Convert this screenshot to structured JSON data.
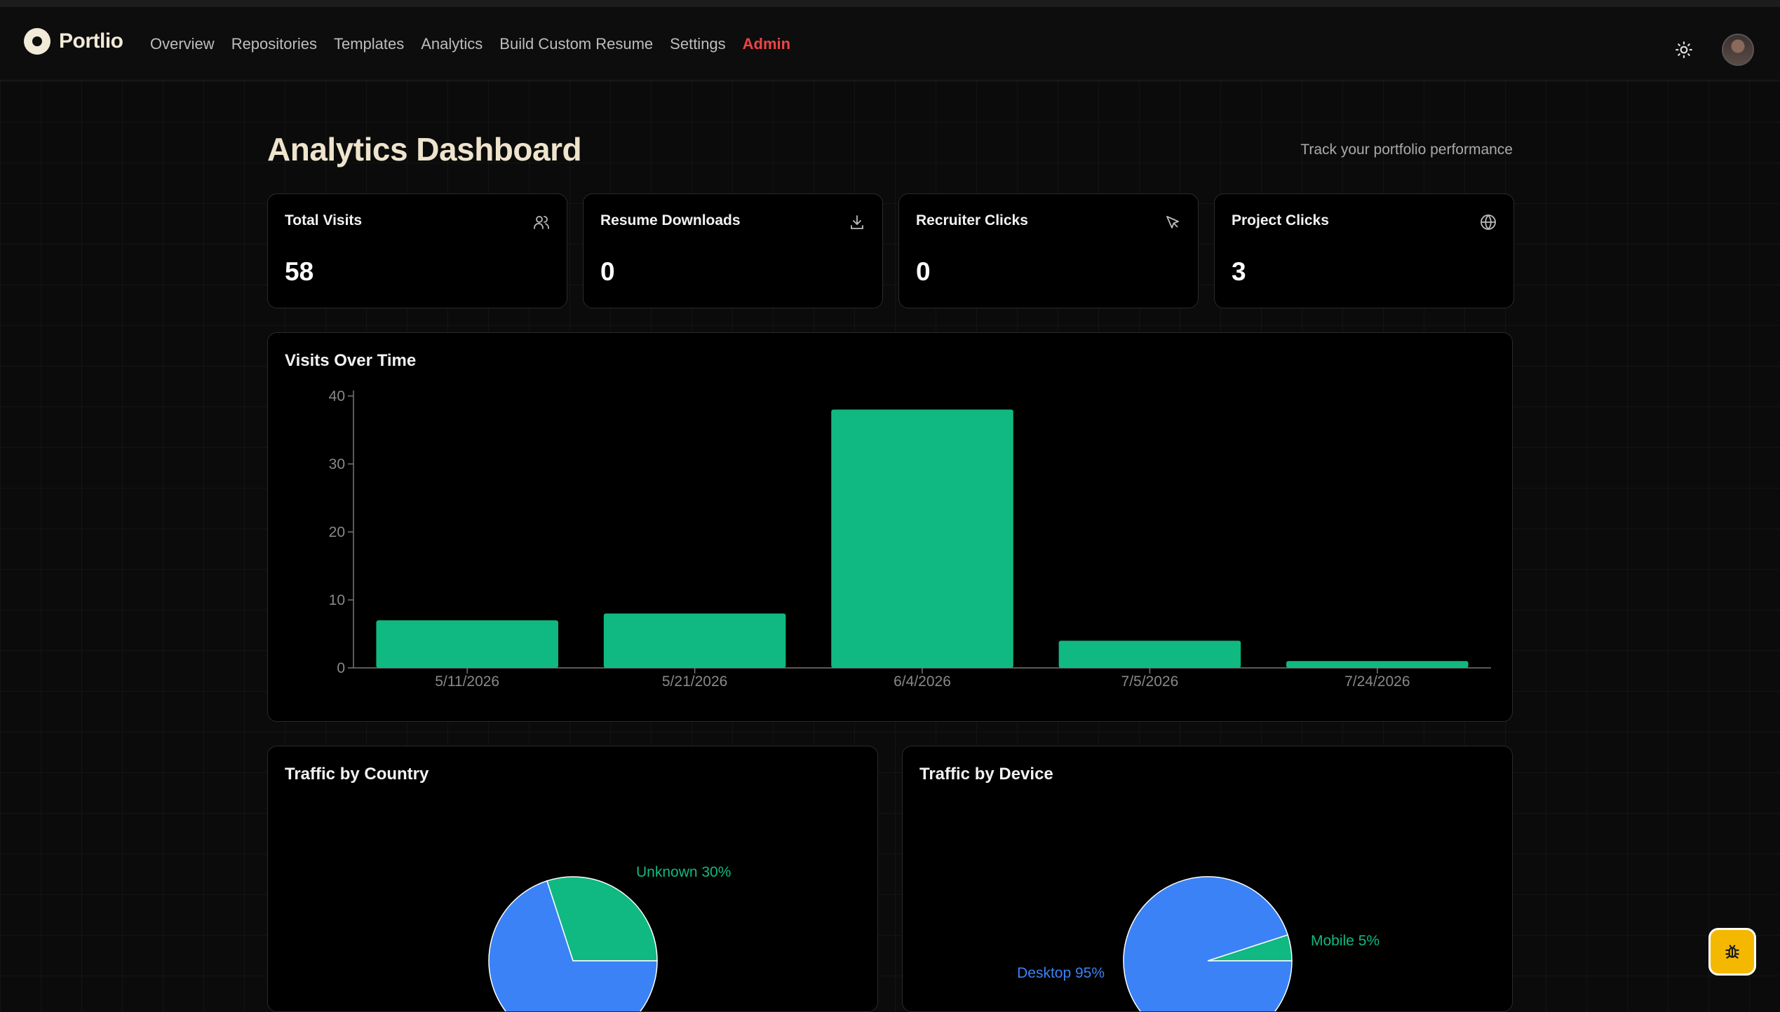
{
  "app": {
    "brand": "Portlio"
  },
  "nav": {
    "items": [
      "Overview",
      "Repositories",
      "Templates",
      "Analytics",
      "Build Custom Resume",
      "Settings"
    ],
    "admin": "Admin"
  },
  "header": {
    "title": "Analytics Dashboard",
    "subtitle": "Track your portfolio performance"
  },
  "stats": [
    {
      "label": "Total Visits",
      "value": "58",
      "icon": "users-icon"
    },
    {
      "label": "Resume Downloads",
      "value": "0",
      "icon": "download-icon"
    },
    {
      "label": "Recruiter Clicks",
      "value": "0",
      "icon": "cursor-icon"
    },
    {
      "label": "Project Clicks",
      "value": "3",
      "icon": "globe-icon"
    }
  ],
  "colors": {
    "green": "#10b981",
    "blue": "#3b82f6",
    "admin": "#ef4444",
    "accent": "#f5b800"
  },
  "chart_data": [
    {
      "type": "bar",
      "title": "Visits Over Time",
      "categories": [
        "5/11/2026",
        "5/21/2026",
        "6/4/2026",
        "7/5/2026",
        "7/24/2026"
      ],
      "values": [
        7,
        8,
        38,
        4,
        1
      ],
      "yticks": [
        0,
        10,
        20,
        30,
        40
      ],
      "ylim": [
        0,
        40
      ],
      "color": "#10b981",
      "grid": false
    },
    {
      "type": "pie",
      "title": "Traffic by Country",
      "slices": [
        {
          "label": "Unknown 30%",
          "value": 30,
          "color": "#10b981"
        },
        {
          "label": "",
          "value": 70,
          "color": "#3b82f6"
        }
      ]
    },
    {
      "type": "pie",
      "title": "Traffic by Device",
      "slices": [
        {
          "label": "Mobile 5%",
          "value": 5,
          "color": "#10b981"
        },
        {
          "label": "Desktop 95%",
          "value": 95,
          "color": "#3b82f6"
        }
      ]
    }
  ]
}
